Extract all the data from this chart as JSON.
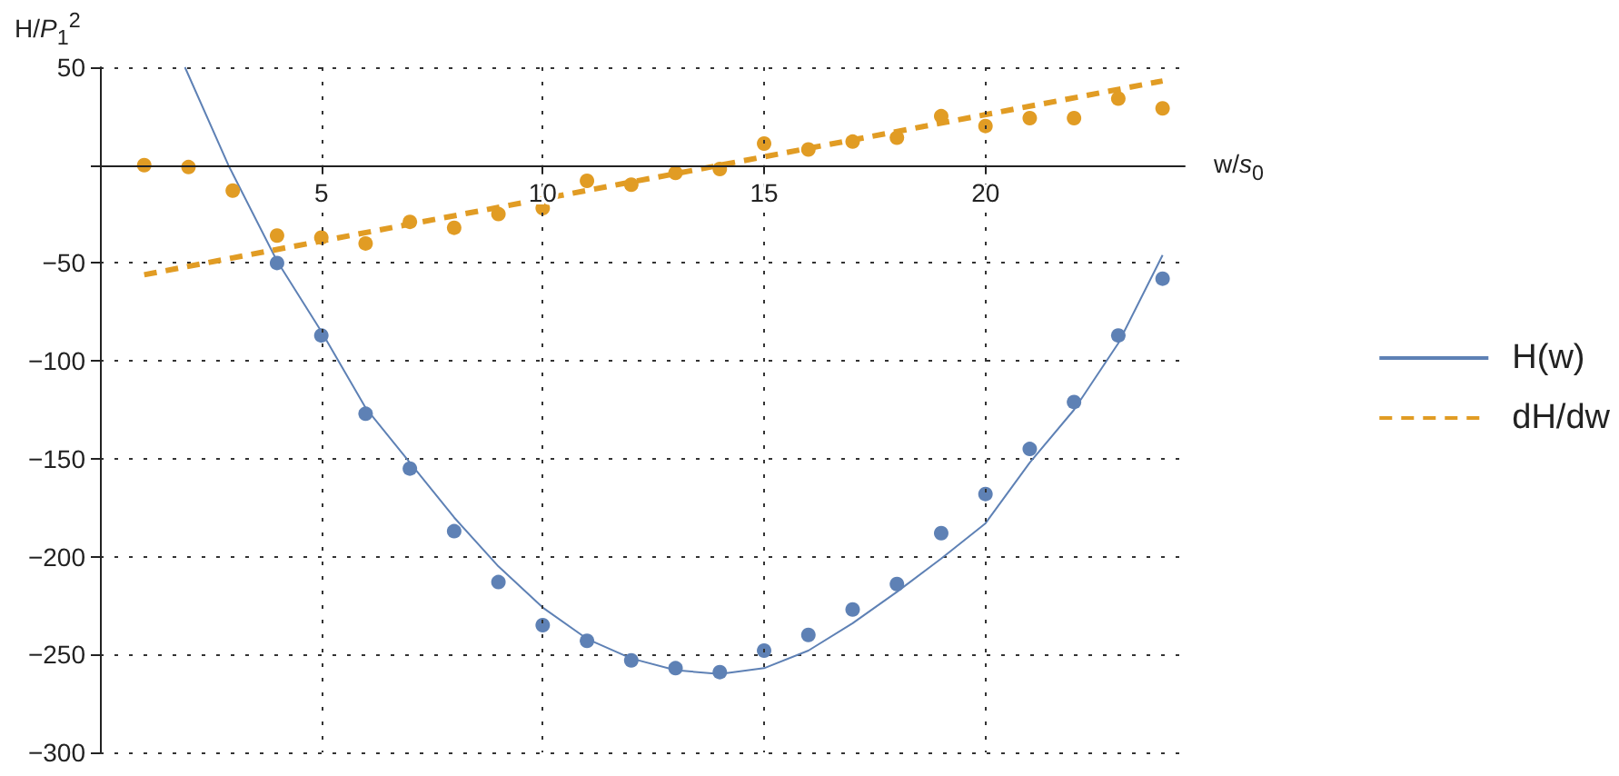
{
  "chart_data": {
    "type": "scatter",
    "xlabel": "w/s$_{0}$",
    "ylabel": "H/P$_{1}$$^{2}$",
    "xlim": [
      0,
      24.5
    ],
    "xticks": [
      5,
      10,
      15,
      20
    ],
    "ylim": [
      -300,
      50
    ],
    "yticks": [
      50,
      {
        "value": 0,
        "label": null
      },
      {
        "value": -50,
        "label": "−50"
      },
      {
        "value": -100,
        "label": "−100"
      },
      {
        "value": -150,
        "label": "−150"
      },
      {
        "value": -200,
        "label": "−200"
      },
      {
        "value": -250,
        "label": "−250"
      },
      {
        "value": -300,
        "label": "−300"
      }
    ],
    "grid": true,
    "legend": "right",
    "series": [
      {
        "type": "line",
        "name": "H(w)",
        "color": "#5e81b5",
        "line_style": "solid",
        "marker": "none",
        "x": [
          1.92,
          2.9,
          4,
          5,
          6,
          7,
          8,
          9,
          10,
          11,
          12,
          13,
          14,
          15,
          16,
          17,
          18,
          19,
          20,
          21,
          22,
          23,
          24
        ],
        "values": [
          50,
          0,
          -49,
          -85,
          -124,
          -152,
          -180,
          -205,
          -226,
          -242,
          -252,
          -258,
          -260,
          -257,
          -248,
          -234,
          -218,
          -201,
          -183,
          -152,
          -125,
          -91,
          -46
        ]
      },
      {
        "type": "line",
        "name": "dH/dw",
        "color": "#e19c24",
        "line_style": "dashed",
        "marker": "none",
        "x": [
          1,
          24
        ],
        "values": [
          -56,
          43
        ]
      },
      {
        "color": "#5e81b5",
        "marker": "circle",
        "x": [
          4,
          5,
          6,
          7,
          8,
          9,
          10,
          11,
          12,
          13,
          14,
          15,
          16,
          17,
          18,
          19,
          20,
          21,
          22,
          23,
          24
        ],
        "values": [
          -50,
          -87,
          -127,
          -155,
          -187,
          -213,
          -235,
          -243,
          -253,
          -257,
          -259,
          -248,
          -240,
          -227,
          -214,
          -188,
          -168,
          -145,
          -121,
          -87,
          -58
        ]
      },
      {
        "color": "#e19c24",
        "marker": "circle",
        "x": [
          1,
          2,
          3,
          4,
          5,
          6,
          7,
          8,
          9,
          10,
          11,
          12,
          13,
          14,
          15,
          16,
          17,
          18,
          19,
          20,
          21,
          22,
          23,
          24
        ],
        "values": [
          0,
          -1,
          -13,
          -36,
          -37,
          -40,
          -29,
          -32,
          -25,
          -22,
          -8,
          -10,
          -4,
          -2,
          11,
          8,
          12,
          14,
          25,
          20,
          24,
          24,
          34,
          29
        ]
      }
    ]
  }
}
